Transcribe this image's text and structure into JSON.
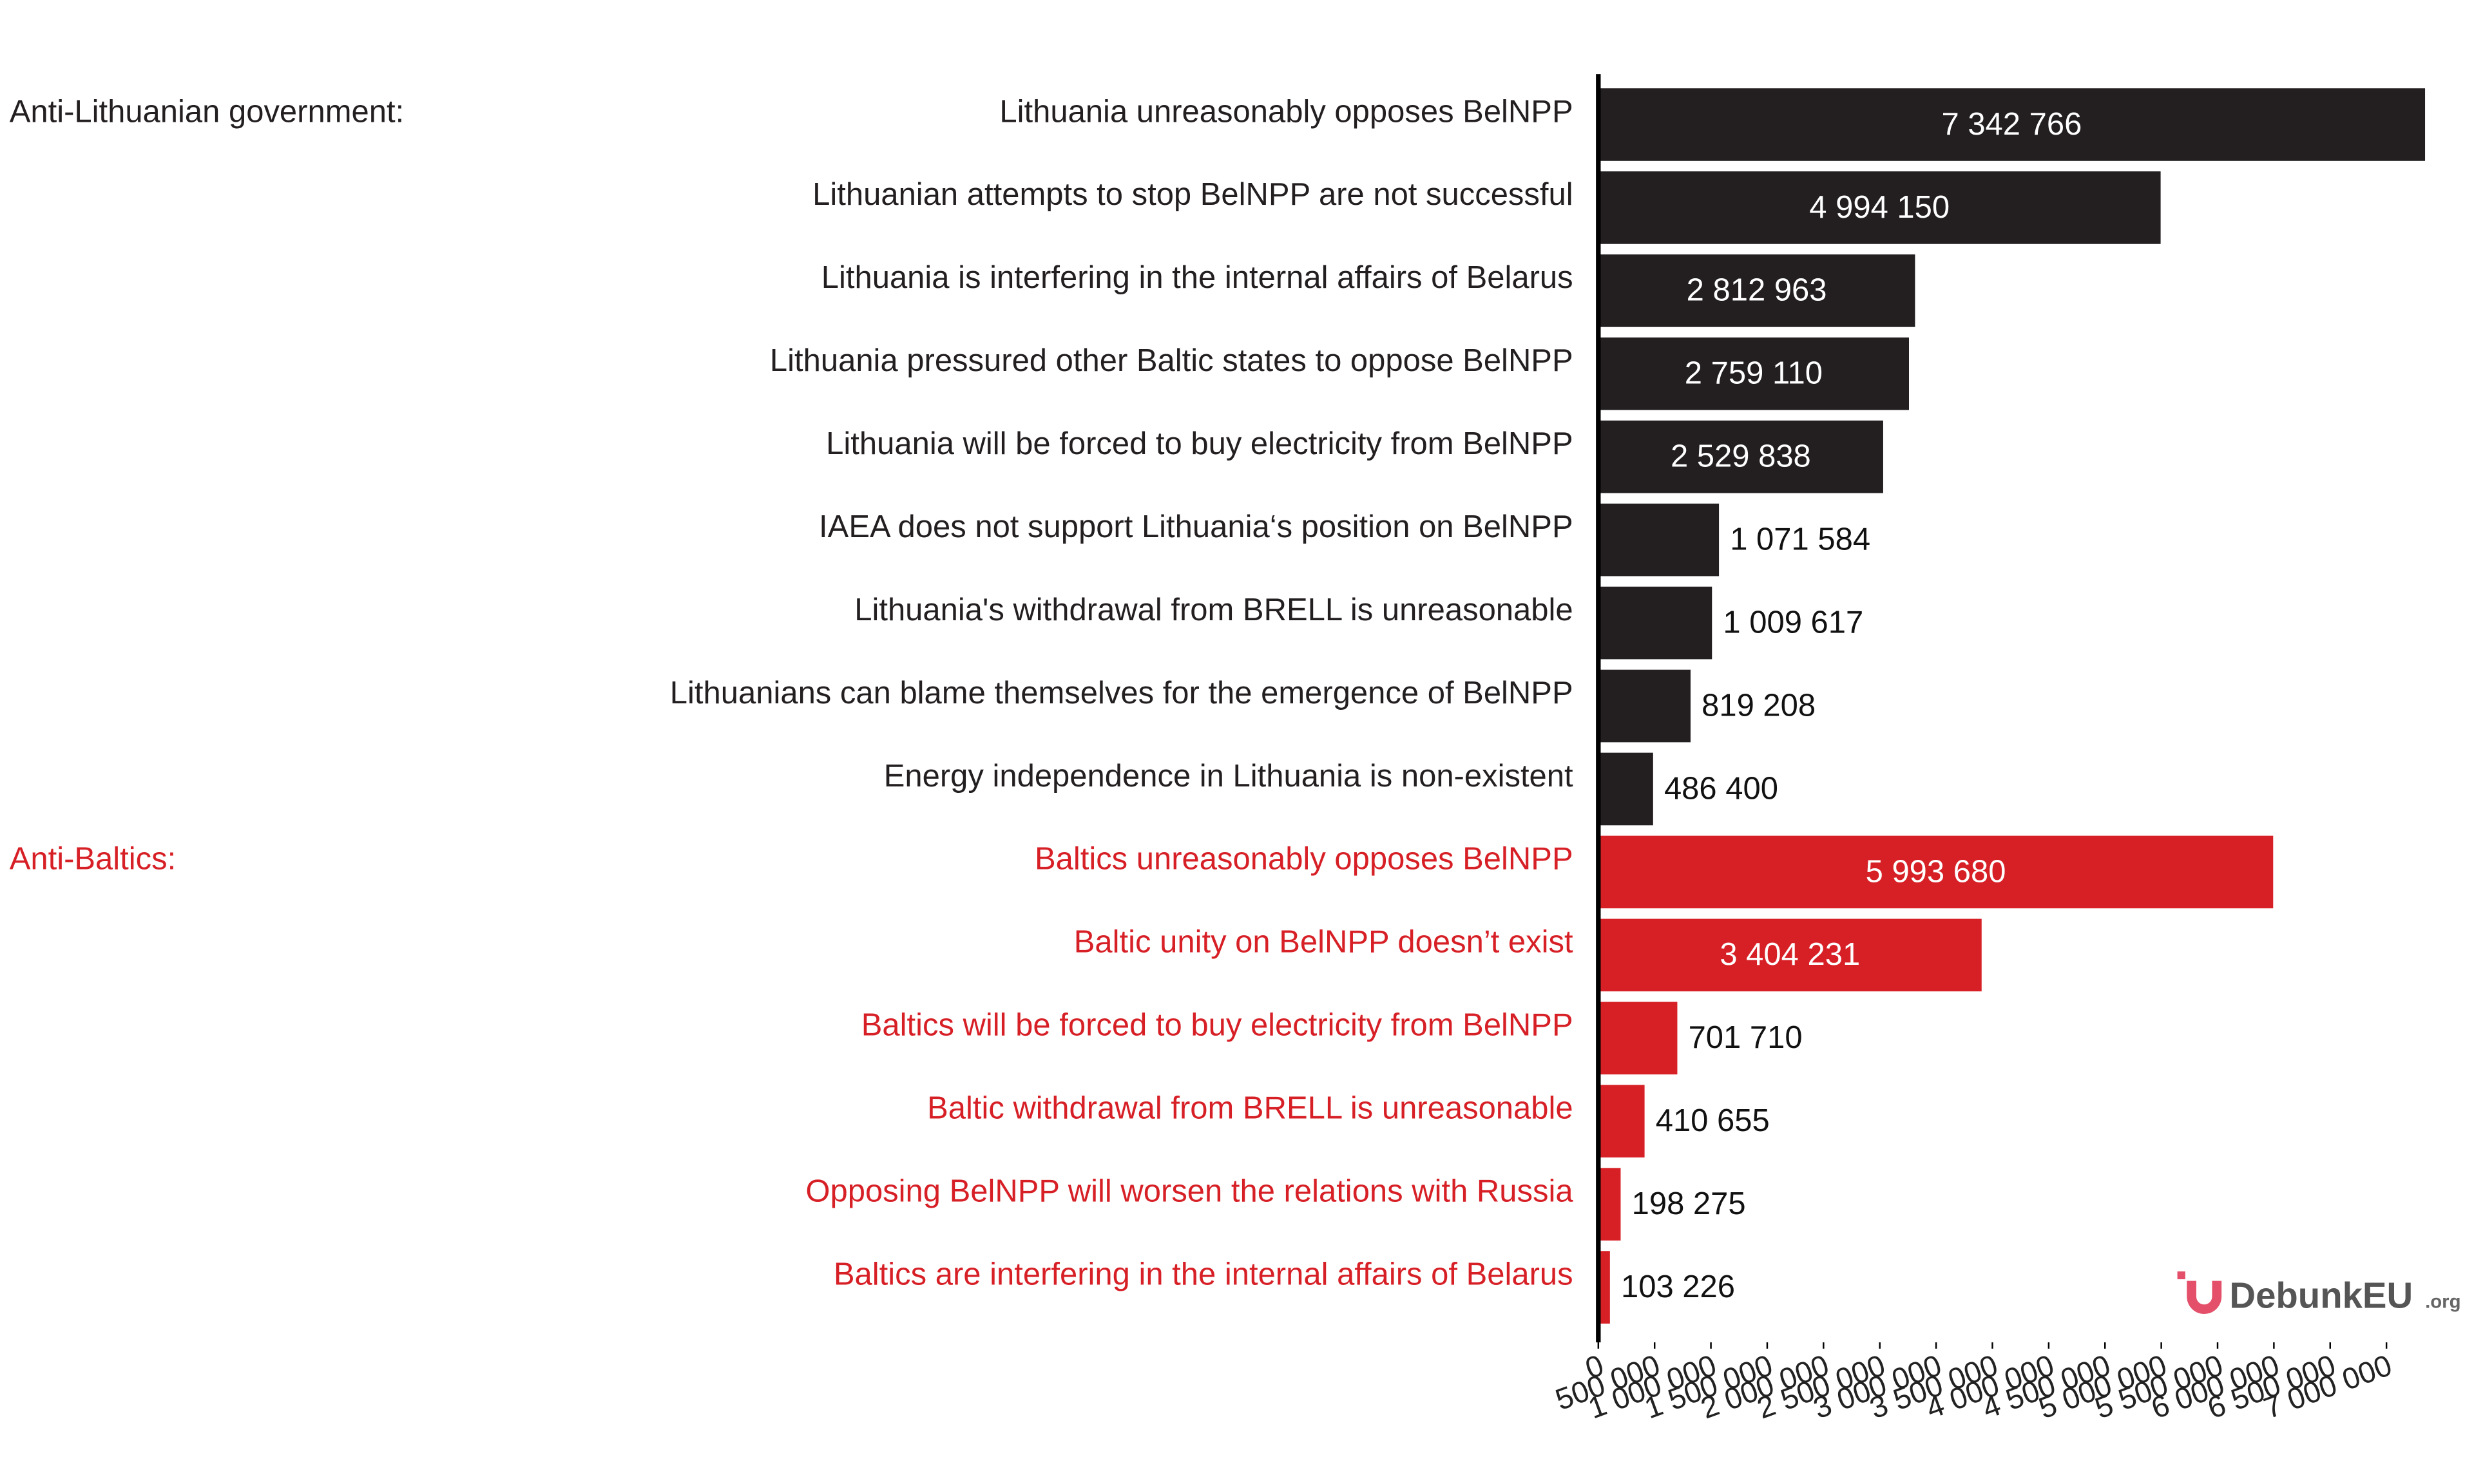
{
  "chart_data": {
    "type": "bar",
    "orientation": "horizontal",
    "series": [
      {
        "name": "Anti-Lithuanian government:",
        "color": "#231f20",
        "categories": [
          "Lithuania unreasonably opposes BelNPP",
          "Lithuanian attempts to stop BelNPP are not successful",
          "Lithuania is interfering in the internal affairs of Belarus",
          "Lithuania pressured other Baltic states to oppose BelNPP",
          "Lithuania will be forced to buy electricity from BelNPP",
          "IAEA does not support Lithuania‘s position on BelNPP",
          "Lithuania's withdrawal from BRELL is unreasonable",
          "Lithuanians can blame themselves for the emergence of BelNPP",
          "Energy independence in Lithuania is non-existent"
        ],
        "values": [
          7342766,
          4994150,
          2812963,
          2759110,
          2529838,
          1071584,
          1009617,
          819208,
          486400
        ],
        "value_labels": [
          "7 342 766",
          "4 994 150",
          "2 812 963",
          "2 759 110",
          "2 529 838",
          "1 071 584",
          "1 009 617",
          "819 208",
          "486 400"
        ]
      },
      {
        "name": "Anti-Baltics:",
        "color": "#d71f26",
        "categories": [
          "Baltics unreasonably opposes BelNPP",
          "Baltic unity on BelNPP doesn’t exist",
          "Baltics will be forced to buy electricity from BelNPP",
          "Baltic withdrawal from BRELL is unreasonable",
          "Opposing BelNPP will worsen the relations with Russia",
          "Baltics are interfering in the internal affairs of Belarus"
        ],
        "values": [
          5993680,
          3404231,
          701710,
          410655,
          198275,
          103226
        ],
        "value_labels": [
          "5 993 680",
          "3 404 231",
          "701 710",
          "410 655",
          "198 275",
          "103 226"
        ]
      }
    ],
    "xlim": [
      0,
      7350000
    ],
    "xticks": [
      0,
      {
        "value": 500000,
        "label": "500 000"
      },
      {
        "value": 1000000,
        "label": "1 000 000"
      },
      {
        "value": 1500000,
        "label": "1 500 000"
      },
      {
        "value": 2000000,
        "label": "2 000 000"
      },
      {
        "value": 2500000,
        "label": "2 500 000"
      },
      {
        "value": 3000000,
        "label": "3 000 000"
      },
      {
        "value": 3500000,
        "label": "3 500 000"
      },
      {
        "value": 4000000,
        "label": "4 000 000"
      },
      {
        "value": 4500000,
        "label": "4 500 000"
      },
      {
        "value": 5000000,
        "label": "5 000 000"
      },
      {
        "value": 5500000,
        "label": "5 500 000"
      },
      {
        "value": 6000000,
        "label": "6 000 000"
      },
      {
        "value": 6500000,
        "label": "6 500 000"
      },
      {
        "value": 7000000,
        "label": "7 000 000"
      }
    ],
    "grid": false,
    "logo": "DebunkEU",
    "logo_suffix": ".org"
  }
}
